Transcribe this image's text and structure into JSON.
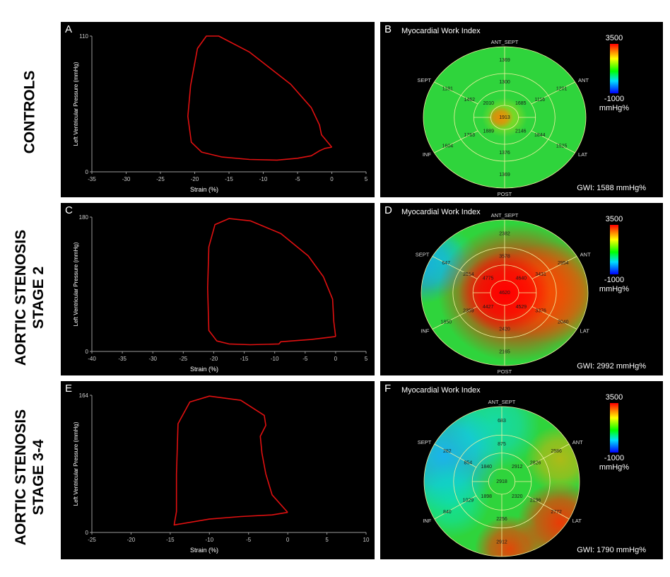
{
  "rows": [
    {
      "label": "CONTROLS"
    },
    {
      "label": "AORTIC STENOSIS STAGE 2"
    },
    {
      "label": "AORTIC STENOSIS STAGE 3-4"
    }
  ],
  "pv_panels": [
    {
      "letter": "A",
      "xlabel": "Strain (%)",
      "ylabel": "Left Ventricular Pressure (mmHg)"
    },
    {
      "letter": "C",
      "xlabel": "Strain (%)",
      "ylabel": "Left Ventricular Pressure (mmHg)"
    },
    {
      "letter": "E",
      "xlabel": "Strain (%)",
      "ylabel": "Left Ventricular Pressure (mmHg)"
    }
  ],
  "bullseye_panels": [
    {
      "letter": "B",
      "title": "Myocardial Work Index",
      "gwi": "GWI: 1588 mmHg%",
      "cb_max": "3500",
      "cb_min": "-1000",
      "cb_unit": "mmHg%"
    },
    {
      "letter": "D",
      "title": "Myocardial Work Index",
      "gwi": "GWI: 2992 mmHg%",
      "cb_max": "3500",
      "cb_min": "-1000",
      "cb_unit": "mmHg%"
    },
    {
      "letter": "F",
      "title": "Myocardial Work Index",
      "gwi": "GWI: 1790 mmHg%",
      "cb_max": "3500",
      "cb_min": "-1000",
      "cb_unit": "mmHg%"
    }
  ],
  "chart_data": [
    {
      "type": "line",
      "panel": "A",
      "xlabel": "Strain (%)",
      "ylabel": "Left Ventricular Pressure (mmHg)",
      "xlim": [
        -35,
        5
      ],
      "ylim": [
        0,
        110
      ],
      "xticks": [
        "-35",
        "-30",
        "-25",
        "-20",
        "-15",
        "-10",
        "-5",
        "0",
        "5"
      ],
      "xtick_values": [
        -35,
        -30,
        -25,
        -20,
        -15,
        -10,
        -5,
        0,
        5
      ],
      "yticks": [
        "0",
        "110"
      ],
      "ytick_values": [
        0,
        110
      ],
      "series": [
        {
          "color": "#e01010",
          "points": [
            [
              0,
              20
            ],
            [
              -1,
              19
            ],
            [
              -1.8,
              17
            ],
            [
              -3,
              13
            ],
            [
              -5,
              11
            ],
            [
              -8,
              9.5
            ],
            [
              -12,
              10
            ],
            [
              -16,
              12
            ],
            [
              -19,
              16
            ],
            [
              -20.5,
              24
            ],
            [
              -21,
              45
            ],
            [
              -20.6,
              70
            ],
            [
              -19.6,
              100
            ],
            [
              -18.3,
              110
            ],
            [
              -16.5,
              110
            ],
            [
              -12,
              97
            ],
            [
              -6,
              71
            ],
            [
              -3,
              52
            ],
            [
              -1.8,
              38
            ],
            [
              -1.5,
              30
            ],
            [
              -0.6,
              24
            ],
            [
              0,
              20
            ]
          ]
        }
      ]
    },
    {
      "type": "line",
      "panel": "C",
      "xlabel": "Strain (%)",
      "ylabel": "Left Ventricular Pressure (mmHg)",
      "xlim": [
        -40,
        5
      ],
      "ylim": [
        0,
        180
      ],
      "xticks": [
        "-40",
        "-35",
        "-30",
        "-25",
        "-20",
        "-15",
        "-10",
        "-5",
        "0",
        "5"
      ],
      "xtick_values": [
        -40,
        -35,
        -30,
        -25,
        -20,
        -15,
        -10,
        -5,
        0,
        5
      ],
      "yticks": [
        "0",
        "180"
      ],
      "ytick_values": [
        0,
        180
      ],
      "series": [
        {
          "color": "#e01010",
          "points": [
            [
              0,
              20
            ],
            [
              -4,
              16
            ],
            [
              -9,
              13
            ],
            [
              -9.3,
              10
            ],
            [
              -14,
              9
            ],
            [
              -17.5,
              10
            ],
            [
              -19.5,
              14
            ],
            [
              -20.8,
              28
            ],
            [
              -21,
              85
            ],
            [
              -20.8,
              140
            ],
            [
              -19.8,
              170
            ],
            [
              -17.5,
              178
            ],
            [
              -14,
              175
            ],
            [
              -9,
              158
            ],
            [
              -4.5,
              128
            ],
            [
              -2,
              100
            ],
            [
              -0.5,
              70
            ],
            [
              -0.3,
              40
            ],
            [
              0,
              20
            ]
          ]
        }
      ]
    },
    {
      "type": "line",
      "panel": "E",
      "xlabel": "Strain (%)",
      "ylabel": "Left Ventricular Pressure (mmHg)",
      "xlim": [
        -25,
        10
      ],
      "ylim": [
        0,
        164
      ],
      "xticks": [
        "-25",
        "-20",
        "-15",
        "-10",
        "-5",
        "0",
        "5",
        "10"
      ],
      "xtick_values": [
        -25,
        -20,
        -15,
        -10,
        -5,
        0,
        5,
        10
      ],
      "yticks": [
        "0",
        "164"
      ],
      "ytick_values": [
        0,
        164
      ],
      "series": [
        {
          "color": "#e01010",
          "points": [
            [
              0,
              24
            ],
            [
              -2,
              21
            ],
            [
              -6,
              19
            ],
            [
              -10,
              16
            ],
            [
              -14.5,
              9
            ],
            [
              -14.2,
              25
            ],
            [
              -14.2,
              70
            ],
            [
              -14,
              130
            ],
            [
              -12.5,
              156
            ],
            [
              -10,
              163
            ],
            [
              -6,
              158
            ],
            [
              -3,
              140
            ],
            [
              -2.8,
              128
            ],
            [
              -3.5,
              115
            ],
            [
              -3.3,
              95
            ],
            [
              -2.8,
              70
            ],
            [
              -2,
              45
            ],
            [
              0,
              24
            ]
          ]
        }
      ]
    },
    {
      "type": "heatmap",
      "panel": "B",
      "title": "Myocardial Work Index",
      "wall_labels": [
        "ANT_SEPT",
        "ANT",
        "LAT",
        "POST",
        "INF",
        "SEPT"
      ],
      "colorbar": {
        "min": -1000,
        "max": 3500,
        "unit": "mmHg%"
      },
      "segments": {
        "basal": [
          "1369",
          "1201",
          "1525",
          "1369",
          "1604",
          "1181"
        ],
        "mid": [
          "1300",
          "1116",
          "1844",
          "1376",
          "1763",
          "1462"
        ],
        "apical": [
          "1685",
          "2146",
          "1889",
          "2010"
        ],
        "apex": "1913"
      },
      "gwi": 1588
    },
    {
      "type": "heatmap",
      "panel": "D",
      "title": "Myocardial Work Index",
      "wall_labels": [
        "ANT_SEPT",
        "ANT",
        "LAT",
        "POST",
        "INF",
        "SEPT"
      ],
      "colorbar": {
        "min": -1000,
        "max": 3500,
        "unit": "mmHg%"
      },
      "segments": {
        "basal": [
          "2382",
          "2954",
          "2040",
          "2165",
          "1850",
          "647"
        ],
        "mid": [
          "3578",
          "3431",
          "3376",
          "2420",
          "2359",
          "2514"
        ],
        "apical": [
          "4640",
          "4529",
          "4427",
          "4775"
        ],
        "apex": "4620"
      },
      "gwi": 2992
    },
    {
      "type": "heatmap",
      "panel": "F",
      "title": "Myocardial Work Index",
      "wall_labels": [
        "ANT_SEPT",
        "ANT",
        "LAT",
        "POST",
        "INF",
        "SEPT"
      ],
      "colorbar": {
        "min": -1000,
        "max": 3500,
        "unit": "mmHg%"
      },
      "segments": {
        "basal": [
          "683",
          "2586",
          "2772",
          "2912",
          "840",
          "282"
        ],
        "mid": [
          "875",
          "2826",
          "2196",
          "2256",
          "1029",
          "854"
        ],
        "apical": [
          "2912",
          "2320",
          "1898",
          "1840"
        ],
        "apex": "2918"
      },
      "gwi": 1790
    }
  ]
}
